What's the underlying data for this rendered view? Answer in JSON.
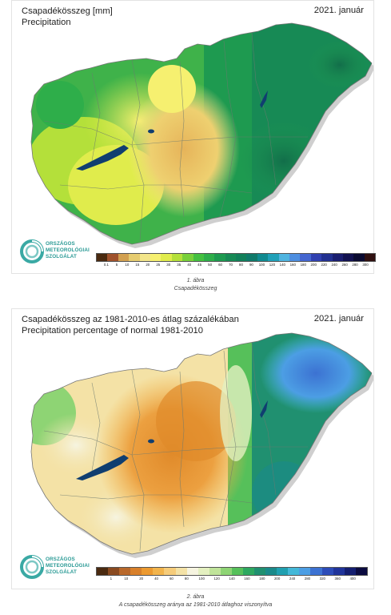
{
  "figures": [
    {
      "title_hu": "Csapadékösszeg [mm]",
      "title_en": "Precipitation",
      "date": "2021. január",
      "logo_lines": [
        "ORSZÁGOS",
        "METEOROLÓGIAI",
        "SZOLGÁLAT"
      ],
      "legend": {
        "colors": [
          "#4a2a10",
          "#a0522d",
          "#d2a050",
          "#e6cc70",
          "#f2e58a",
          "#f6f070",
          "#e0ec4c",
          "#b4e03a",
          "#78d03a",
          "#44c040",
          "#2eae4a",
          "#1e9a50",
          "#178a55",
          "#12805a",
          "#0f7a6a",
          "#108a90",
          "#20a0b8",
          "#4fb4e0",
          "#4d8ee0",
          "#4466d0",
          "#3040b0",
          "#223090",
          "#1a1e70",
          "#121250",
          "#0a0a30",
          "#301010"
        ],
        "labels": [
          "0.1",
          "5",
          "10",
          "15",
          "20",
          "25",
          "30",
          "35",
          "40",
          "45",
          "50",
          "60",
          "70",
          "80",
          "90",
          "100",
          "120",
          "140",
          "160",
          "180",
          "200",
          "220",
          "240",
          "260",
          "280",
          "300"
        ]
      },
      "caption_num": "1. ábra",
      "caption_text": "Csapadékösszeg"
    },
    {
      "title_hu": "Csapadékösszeg az 1981-2010-es átlag százalékában",
      "title_en": "Precipitation percentage of normal 1981-2010",
      "date": "2021. január",
      "logo_lines": [
        "ORSZÁGOS",
        "METEOROLÓGIAI",
        "SZOLGÁLAT"
      ],
      "legend": {
        "colors": [
          "#4a2a10",
          "#8a4a20",
          "#b8682a",
          "#d8802a",
          "#ec9a30",
          "#f2b44c",
          "#f6cc7a",
          "#f4e2a6",
          "#f6f4e0",
          "#e4f0c0",
          "#c0e49a",
          "#8ed474",
          "#56c05a",
          "#2ea860",
          "#209070",
          "#1a8a8a",
          "#20a0b0",
          "#44b8d8",
          "#4c9ee4",
          "#3c72d2",
          "#2c4cb8",
          "#20349a",
          "#141e70",
          "#0a0a40"
        ],
        "labels": [
          "1",
          "10",
          "20",
          "40",
          "60",
          "80",
          "100",
          "120",
          "140",
          "160",
          "180",
          "200",
          "240",
          "280",
          "320",
          "360",
          "400"
        ]
      },
      "caption_num": "2. ábra",
      "caption_text": "A csapadékösszeg aránya az 1981-2010 átlaghoz viszonyítva"
    }
  ]
}
